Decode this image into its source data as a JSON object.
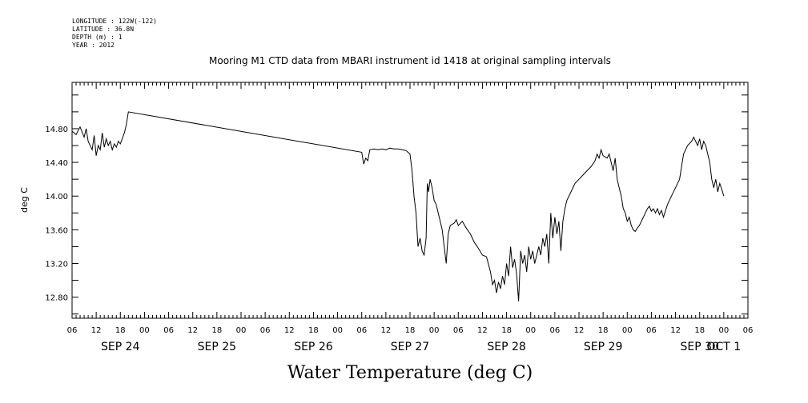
{
  "metadata": [
    "LONGITUDE : 122W(-122)",
    "LATITUDE : 36.8N",
    "DEPTH (m) : 1",
    "YEAR : 2012"
  ],
  "chart_data": {
    "type": "line",
    "title": "Mooring M1 CTD data from MBARI instrument id 1418 at original sampling intervals",
    "xlabel": "Water Temperature (deg C)",
    "ylabel": "deg C",
    "ylim": [
      12.55,
      15.35
    ],
    "yticks": [
      "12.80",
      "13.20",
      "13.60",
      "14.00",
      "14.40",
      "14.80"
    ],
    "xlim_hours": [
      0,
      168
    ],
    "x_hour_labels": [
      "06",
      "12",
      "18",
      "00",
      "06",
      "12",
      "18",
      "00",
      "06",
      "12",
      "18",
      "00",
      "06",
      "12",
      "18",
      "00",
      "06",
      "12",
      "18",
      "00",
      "06",
      "12",
      "18",
      "00",
      "06",
      "12",
      "18",
      "00",
      "06"
    ],
    "date_labels": [
      "SEP 24",
      "SEP 25",
      "SEP 26",
      "SEP 27",
      "SEP 28",
      "SEP 29",
      "SEP 30",
      "OCT 1"
    ],
    "series": [
      {
        "points": [
          [
            0,
            14.77
          ],
          [
            1,
            14.73
          ],
          [
            2,
            14.82
          ],
          [
            3,
            14.7
          ],
          [
            3.5,
            14.8
          ],
          [
            4,
            14.65
          ],
          [
            5,
            14.55
          ],
          [
            5.5,
            14.72
          ],
          [
            6,
            14.48
          ],
          [
            6.5,
            14.6
          ],
          [
            7,
            14.55
          ],
          [
            7.5,
            14.75
          ],
          [
            8,
            14.58
          ],
          [
            8.5,
            14.68
          ],
          [
            9,
            14.6
          ],
          [
            9.5,
            14.65
          ],
          [
            10,
            14.55
          ],
          [
            10.5,
            14.62
          ],
          [
            11,
            14.58
          ],
          [
            11.5,
            14.65
          ],
          [
            12,
            14.62
          ],
          [
            13,
            14.75
          ],
          [
            13.5,
            14.85
          ],
          [
            14,
            15.0
          ],
          [
            72,
            14.52
          ],
          [
            72.5,
            14.38
          ],
          [
            73,
            14.45
          ],
          [
            73.5,
            14.42
          ],
          [
            74,
            14.55
          ],
          [
            75,
            14.56
          ],
          [
            76,
            14.55
          ],
          [
            77,
            14.56
          ],
          [
            78,
            14.55
          ],
          [
            79,
            14.57
          ],
          [
            80,
            14.56
          ],
          [
            81,
            14.56
          ],
          [
            82,
            14.55
          ],
          [
            83,
            14.54
          ],
          [
            84,
            14.5
          ],
          [
            84.5,
            14.3
          ],
          [
            85,
            14.0
          ],
          [
            85.5,
            13.8
          ],
          [
            86,
            13.4
          ],
          [
            86.5,
            13.5
          ],
          [
            87,
            13.35
          ],
          [
            87.5,
            13.3
          ],
          [
            88,
            13.5
          ],
          [
            88.3,
            14.15
          ],
          [
            88.6,
            14.05
          ],
          [
            89,
            14.2
          ],
          [
            89.5,
            14.1
          ],
          [
            90,
            13.95
          ],
          [
            90.5,
            13.9
          ],
          [
            91,
            13.8
          ],
          [
            91.5,
            13.7
          ],
          [
            92,
            13.6
          ],
          [
            92.5,
            13.4
          ],
          [
            93,
            13.2
          ],
          [
            93.5,
            13.55
          ],
          [
            94,
            13.65
          ],
          [
            95,
            13.68
          ],
          [
            95.5,
            13.72
          ],
          [
            96,
            13.65
          ],
          [
            97,
            13.7
          ],
          [
            98,
            13.62
          ],
          [
            99,
            13.55
          ],
          [
            100,
            13.45
          ],
          [
            101,
            13.38
          ],
          [
            102,
            13.3
          ],
          [
            103,
            13.28
          ],
          [
            104,
            13.1
          ],
          [
            104.5,
            12.95
          ],
          [
            105,
            13.0
          ],
          [
            105.5,
            12.85
          ],
          [
            106,
            12.98
          ],
          [
            106.5,
            12.9
          ],
          [
            107,
            13.05
          ],
          [
            107.5,
            12.95
          ],
          [
            108,
            13.2
          ],
          [
            108.5,
            13.05
          ],
          [
            109,
            13.4
          ],
          [
            109.5,
            13.15
          ],
          [
            110,
            13.25
          ],
          [
            110.5,
            13.08
          ],
          [
            111,
            12.75
          ],
          [
            111.5,
            13.35
          ],
          [
            112,
            13.2
          ],
          [
            112.5,
            13.3
          ],
          [
            113,
            13.1
          ],
          [
            113.5,
            13.4
          ],
          [
            114,
            13.25
          ],
          [
            114.5,
            13.35
          ],
          [
            115,
            13.2
          ],
          [
            115.5,
            13.3
          ],
          [
            116,
            13.4
          ],
          [
            116.5,
            13.3
          ],
          [
            117,
            13.5
          ],
          [
            117.5,
            13.4
          ],
          [
            118,
            13.55
          ],
          [
            118.5,
            13.2
          ],
          [
            119,
            13.8
          ],
          [
            119.5,
            13.5
          ],
          [
            120,
            13.75
          ],
          [
            120.5,
            13.55
          ],
          [
            121,
            13.7
          ],
          [
            121.5,
            13.35
          ],
          [
            122,
            13.7
          ],
          [
            122.5,
            13.85
          ],
          [
            123,
            13.95
          ],
          [
            124,
            14.05
          ],
          [
            125,
            14.15
          ],
          [
            126,
            14.2
          ],
          [
            127,
            14.25
          ],
          [
            128,
            14.3
          ],
          [
            129,
            14.35
          ],
          [
            130,
            14.42
          ],
          [
            130.5,
            14.5
          ],
          [
            131,
            14.45
          ],
          [
            131.5,
            14.55
          ],
          [
            132,
            14.48
          ],
          [
            133,
            14.45
          ],
          [
            133.5,
            14.5
          ],
          [
            134,
            14.4
          ],
          [
            134.5,
            14.3
          ],
          [
            135,
            14.45
          ],
          [
            135.5,
            14.2
          ],
          [
            136,
            14.1
          ],
          [
            136.5,
            14.0
          ],
          [
            137,
            13.85
          ],
          [
            137.5,
            13.8
          ],
          [
            138,
            13.7
          ],
          [
            138.5,
            13.75
          ],
          [
            139,
            13.65
          ],
          [
            139.5,
            13.6
          ],
          [
            140,
            13.58
          ],
          [
            140.5,
            13.62
          ],
          [
            141,
            13.65
          ],
          [
            141.5,
            13.7
          ],
          [
            142,
            13.75
          ],
          [
            142.5,
            13.8
          ],
          [
            143,
            13.85
          ],
          [
            143.5,
            13.88
          ],
          [
            144,
            13.82
          ],
          [
            144.5,
            13.85
          ],
          [
            145,
            13.8
          ],
          [
            145.5,
            13.85
          ],
          [
            146,
            13.78
          ],
          [
            146.5,
            13.83
          ],
          [
            147,
            13.75
          ],
          [
            148,
            13.9
          ],
          [
            149,
            14.0
          ],
          [
            150,
            14.1
          ],
          [
            151,
            14.2
          ],
          [
            151.5,
            14.35
          ],
          [
            152,
            14.5
          ],
          [
            153,
            14.6
          ],
          [
            154,
            14.65
          ],
          [
            154.5,
            14.7
          ],
          [
            155,
            14.65
          ],
          [
            155.5,
            14.6
          ],
          [
            156,
            14.68
          ],
          [
            156.5,
            14.55
          ],
          [
            157,
            14.65
          ],
          [
            157.5,
            14.6
          ],
          [
            158,
            14.5
          ],
          [
            158.5,
            14.4
          ],
          [
            159,
            14.2
          ],
          [
            159.5,
            14.1
          ],
          [
            160,
            14.2
          ],
          [
            160.5,
            14.05
          ],
          [
            161,
            14.15
          ],
          [
            161.5,
            14.08
          ],
          [
            162,
            14.0
          ]
        ]
      }
    ]
  }
}
